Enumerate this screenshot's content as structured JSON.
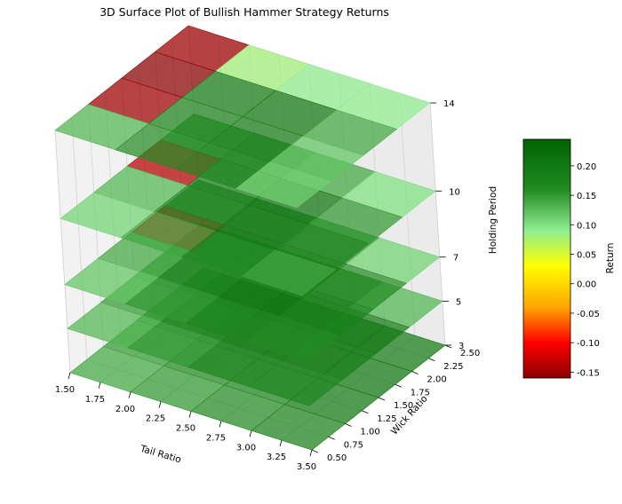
{
  "chart_data": {
    "type": "surface3d",
    "title": "3D Surface Plot of Bullish Hammer Strategy Returns",
    "xlabel": "Tail Ratio",
    "ylabel": "Wick Ratio",
    "zlabel": "Holding Period",
    "x_ticks": [
      "1.50",
      "1.75",
      "2.00",
      "2.25",
      "2.50",
      "2.75",
      "3.00",
      "3.25",
      "3.50"
    ],
    "y_ticks": [
      "0.50",
      "0.75",
      "1.00",
      "1.25",
      "1.50",
      "1.75",
      "2.00",
      "2.25",
      "2.50"
    ],
    "z_ticks": [
      "3",
      "5",
      "7",
      "10",
      "14"
    ],
    "xlim": [
      1.5,
      3.5
    ],
    "ylim": [
      0.5,
      2.5
    ],
    "zlim": [
      3,
      14
    ],
    "x": [
      1.5,
      2.0,
      2.5,
      3.0,
      3.5
    ],
    "y": [
      0.5,
      1.0,
      1.5,
      2.0,
      2.5
    ],
    "holding_periods": [
      3,
      5,
      7,
      10,
      14
    ],
    "surfaces": [
      {
        "holding_period": 3,
        "returns": [
          [
            0.14,
            0.15,
            0.16,
            0.18
          ],
          [
            0.15,
            0.17,
            0.18,
            0.2
          ],
          [
            0.17,
            0.19,
            0.2,
            0.21
          ],
          [
            0.18,
            0.2,
            0.21,
            0.2
          ]
        ]
      },
      {
        "holding_period": 5,
        "returns": [
          [
            0.13,
            0.15,
            0.17,
            0.17
          ],
          [
            0.15,
            0.18,
            0.2,
            0.19
          ],
          [
            0.16,
            0.2,
            0.22,
            0.2
          ],
          [
            0.18,
            0.2,
            0.2,
            0.13
          ]
        ]
      },
      {
        "holding_period": 7,
        "returns": [
          [
            0.12,
            0.15,
            0.17,
            0.16
          ],
          [
            0.14,
            0.18,
            0.2,
            0.18
          ],
          [
            -0.13,
            0.19,
            0.21,
            0.16
          ],
          [
            0.16,
            0.17,
            0.16,
            0.11
          ]
        ]
      },
      {
        "holding_period": 10,
        "returns": [
          [
            0.11,
            0.14,
            0.16,
            0.14
          ],
          [
            0.13,
            0.18,
            0.2,
            0.17
          ],
          [
            -0.14,
            0.19,
            0.21,
            0.15
          ],
          [
            0.15,
            0.16,
            0.14,
            0.1
          ]
        ]
      },
      {
        "holding_period": 14,
        "returns": [
          [
            0.13,
            0.16,
            0.17,
            0.11
          ],
          [
            -0.15,
            0.18,
            0.19,
            0.12
          ],
          [
            -0.16,
            0.19,
            0.2,
            0.14
          ],
          [
            -0.15,
            0.08,
            0.09,
            0.09
          ]
        ]
      }
    ],
    "colorbar": {
      "label": "Return",
      "range": [
        -0.16,
        0.245
      ],
      "ticks": [
        "-0.15",
        "-0.10",
        "-0.05",
        "0.00",
        "0.05",
        "0.10",
        "0.15",
        "0.20"
      ],
      "stops": [
        {
          "value": -0.16,
          "color": "#8b0000"
        },
        {
          "value": -0.1,
          "color": "#ff0000"
        },
        {
          "value": -0.04,
          "color": "#ffa500"
        },
        {
          "value": 0.03,
          "color": "#ffff00"
        },
        {
          "value": 0.09,
          "color": "#90ee90"
        },
        {
          "value": 0.16,
          "color": "#228b22"
        },
        {
          "value": 0.245,
          "color": "#006400"
        }
      ]
    },
    "grid": true
  }
}
